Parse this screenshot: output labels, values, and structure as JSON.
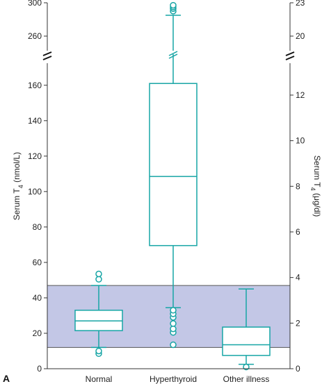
{
  "chart_data": {
    "type": "boxplot",
    "panel_label": "A",
    "y_left": {
      "label_main": "Serum T",
      "label_sub": "4",
      "label_unit": " (nmol/L)",
      "lower_ticks": [
        0,
        20,
        40,
        60,
        80,
        100,
        120,
        140,
        160
      ],
      "upper_ticks": [
        260,
        300
      ],
      "lower_range": [
        0,
        165
      ],
      "upper_range": [
        245,
        300
      ],
      "break": true
    },
    "y_right": {
      "label_main": "Serum T",
      "label_sub": "4",
      "label_unit": " (μg/dl)",
      "lower_ticks": [
        0,
        2,
        4,
        6,
        8,
        10,
        12
      ],
      "upper_ticks": [
        20,
        23
      ],
      "conversion_nmol_per_ugdl": 12.87
    },
    "reference_range": {
      "low": 12,
      "high": 47,
      "color": "#c3c7e6"
    },
    "box_color": "#16a5a5",
    "categories": [
      "Normal",
      "Hyperthyroid",
      "Other illness"
    ],
    "boxes": [
      {
        "name": "Normal",
        "whisker_low": 12,
        "q1": 21.5,
        "median": 27,
        "q3": 33,
        "whisker_high": 47,
        "outliers": [
          8.5,
          10,
          50.5,
          53.5
        ]
      },
      {
        "name": "Hyperthyroid",
        "whisker_low": 34.5,
        "q1": 69.5,
        "median": 108.5,
        "q3": 161,
        "whisker_high": 285,
        "outliers": [
          13.5,
          20.5,
          22.5,
          25.5,
          29,
          31,
          33,
          290,
          293,
          295,
          297
        ]
      },
      {
        "name": "Other illness",
        "whisker_low": 2.5,
        "q1": 7.5,
        "median": 13.5,
        "q3": 23.5,
        "whisker_high": 45,
        "outliers": [
          1
        ]
      }
    ]
  }
}
